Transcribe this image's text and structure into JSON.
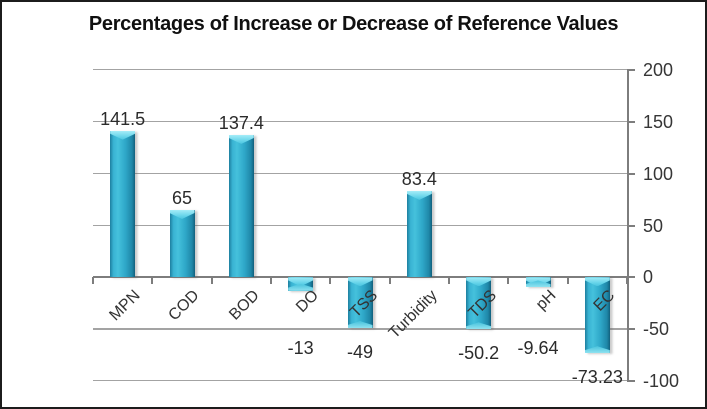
{
  "chart_data": {
    "type": "bar",
    "title": "Percentages of Increase or Decrease of Reference Values",
    "categories": [
      "MPN",
      "COD",
      "BOD",
      "DO",
      "TSS",
      "Turbidity",
      "TDS",
      "pH",
      "EC"
    ],
    "values": [
      141.5,
      65,
      137.4,
      -13,
      -49,
      83.4,
      -50.2,
      -9.64,
      -73.23
    ],
    "data_labels": [
      "141.5",
      "65",
      "137.4",
      "-13",
      "-49",
      "83.4",
      "-50.2",
      "-9.64",
      "-73.23"
    ],
    "xlabel": "",
    "ylabel": "",
    "ylim": [
      -100,
      200
    ],
    "y_axis": {
      "side": "right",
      "ticks": [
        200,
        150,
        100,
        50,
        0,
        -50,
        -100
      ],
      "tick_labels": [
        "200",
        "150",
        "100",
        "50",
        "0",
        "-50",
        "-100"
      ]
    },
    "grid": "horizontal",
    "legend": false,
    "bar_color": "#2EA7C8",
    "bar_highlight_color": "#7ADCEF",
    "gridline_color": "#A3A3A3",
    "axis_color": "#7D7D7D",
    "text_color": "#333333",
    "frame_border_color": "#1C1C1C"
  }
}
